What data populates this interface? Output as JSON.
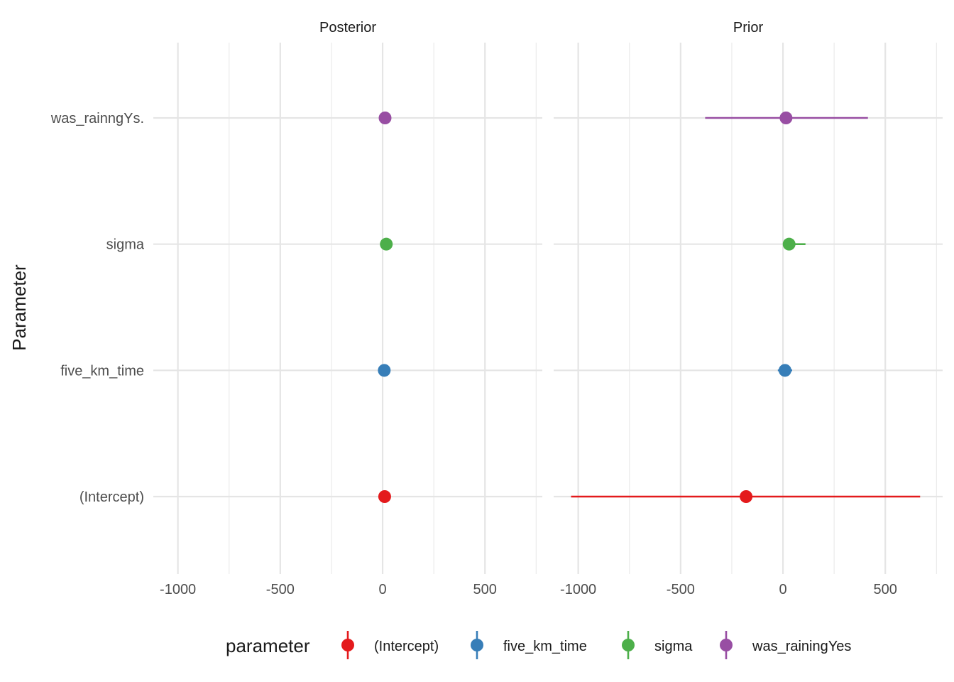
{
  "chart_data": {
    "type": "pointrange",
    "facets": [
      "Posterior",
      "Prior"
    ],
    "ylabel": "Parameter",
    "xlabel": "",
    "xlim": [
      -1120,
      780
    ],
    "xticks": [
      -1000,
      -500,
      0,
      500
    ],
    "xtick_labels": [
      "-1000",
      "-500",
      "0",
      "500"
    ],
    "y_categories": [
      "(Intercept)",
      "five_km_time",
      "sigma",
      "was_rainngYs."
    ],
    "grid": true,
    "legend": {
      "title": "parameter",
      "position": "bottom",
      "entries": [
        "(Intercept)",
        "five_km_time",
        "sigma",
        "was_rainingYes"
      ]
    },
    "colors": {
      "(Intercept)": "#e41a1c",
      "five_km_time": "#377eb8",
      "sigma": "#4daf4a",
      "was_rainingYes": "#984ea3"
    },
    "series": [
      {
        "facet": "Posterior",
        "parameter": "(Intercept)",
        "category": "(Intercept)",
        "estimate": 10,
        "low": 8,
        "high": 12
      },
      {
        "facet": "Posterior",
        "parameter": "five_km_time",
        "category": "five_km_time",
        "estimate": 8,
        "low": 7,
        "high": 9
      },
      {
        "facet": "Posterior",
        "parameter": "sigma",
        "category": "sigma",
        "estimate": 18,
        "low": 15,
        "high": 22
      },
      {
        "facet": "Posterior",
        "parameter": "was_rainingYes",
        "category": "was_rainngYs.",
        "estimate": 12,
        "low": 9,
        "high": 15
      },
      {
        "facet": "Prior",
        "parameter": "(Intercept)",
        "category": "(Intercept)",
        "estimate": -180,
        "low": -1035,
        "high": 670
      },
      {
        "facet": "Prior",
        "parameter": "five_km_time",
        "category": "five_km_time",
        "estimate": 10,
        "low": -25,
        "high": 45
      },
      {
        "facet": "Prior",
        "parameter": "sigma",
        "category": "sigma",
        "estimate": 30,
        "low": 0,
        "high": 110
      },
      {
        "facet": "Prior",
        "parameter": "was_rainingYes",
        "category": "was_rainngYs.",
        "estimate": 15,
        "low": -380,
        "high": 415
      }
    ]
  }
}
